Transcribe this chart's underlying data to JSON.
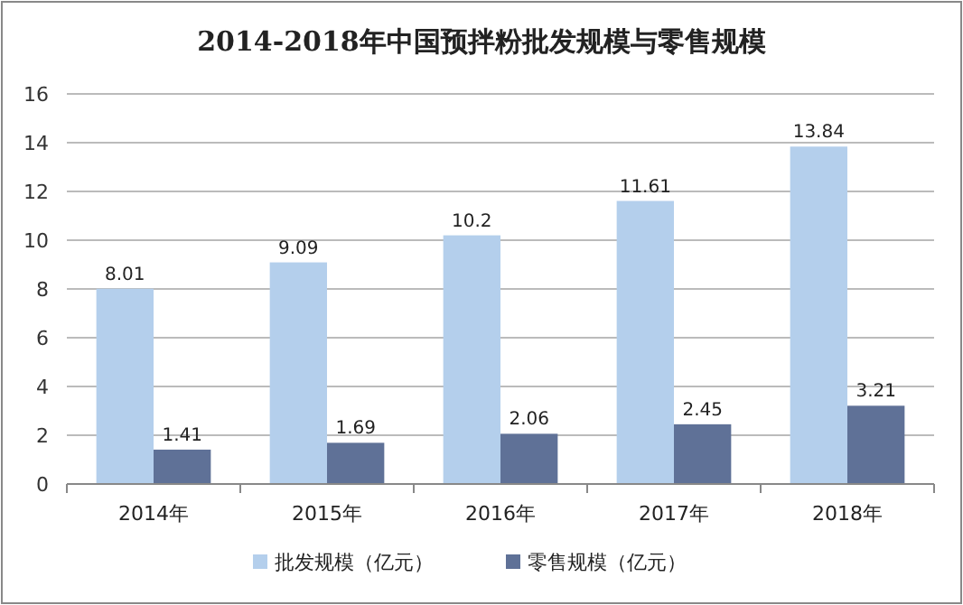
{
  "chart_data": {
    "type": "bar",
    "title": "2014-2018年中国预拌粉批发规模与零售规模",
    "categories": [
      "2014年",
      "2015年",
      "2016年",
      "2017年",
      "2018年"
    ],
    "series": [
      {
        "name": "批发规模（亿元）",
        "color": "#b4cfec",
        "values": [
          8.01,
          9.09,
          10.2,
          11.61,
          13.84
        ]
      },
      {
        "name": "零售规模（亿元）",
        "color": "#5f7197",
        "values": [
          1.41,
          1.69,
          2.06,
          2.45,
          3.21
        ]
      }
    ],
    "ylim": [
      0,
      16
    ],
    "yticks": [
      0,
      2,
      4,
      6,
      8,
      10,
      12,
      14,
      16
    ],
    "grid": "y",
    "legend": "bottom",
    "data_labels": true
  }
}
